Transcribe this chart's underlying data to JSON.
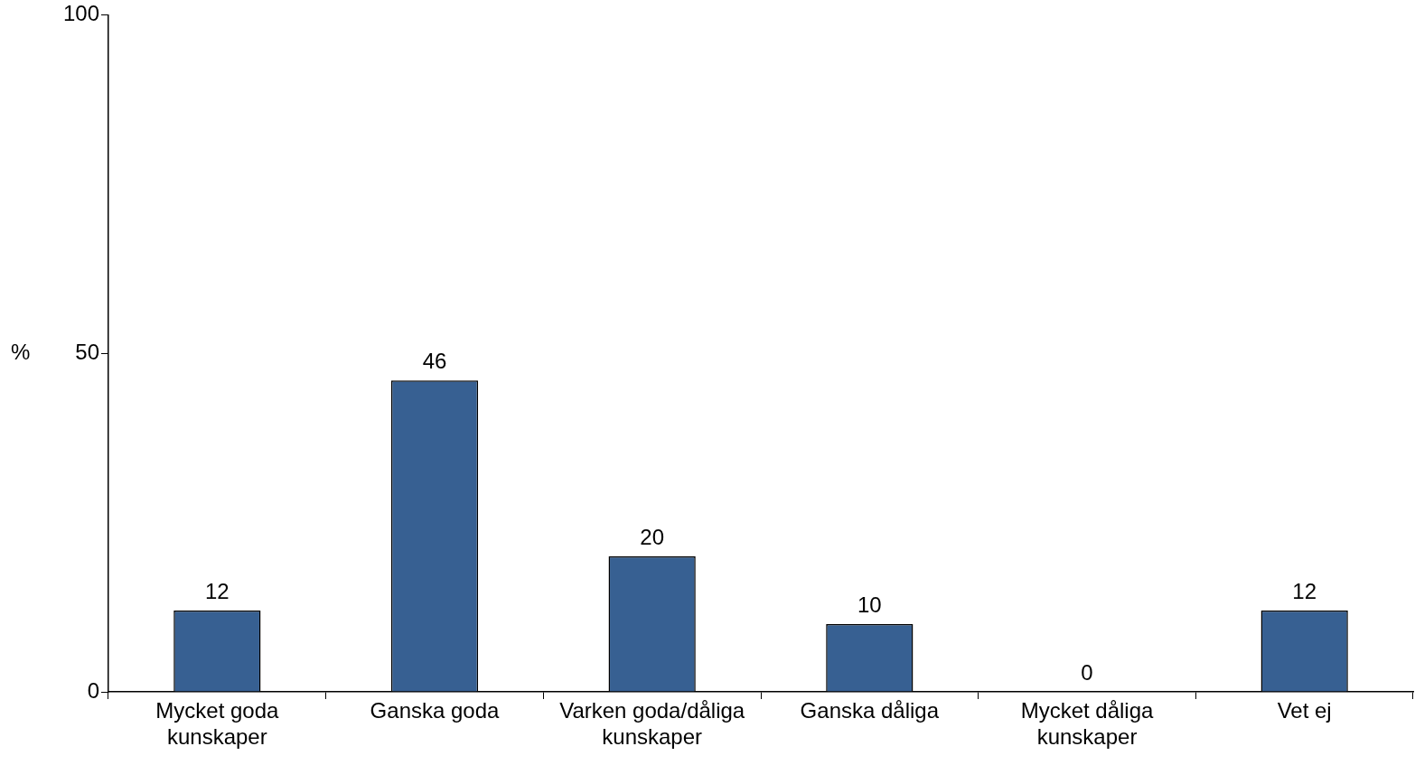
{
  "chart_data": {
    "type": "bar",
    "ylabel": "%",
    "categories": [
      "Mycket goda kunskaper",
      "Ganska goda",
      "Varken goda/dåliga kunskaper",
      "Ganska dåliga",
      "Mycket dåliga kunskaper",
      "Vet ej"
    ],
    "values": [
      12,
      46,
      20,
      10,
      0,
      12
    ],
    "color": "#376092",
    "ylim": [
      0,
      100
    ],
    "yticks": [
      0,
      50,
      100
    ],
    "grid": false,
    "legend": false,
    "data_labels": true
  }
}
